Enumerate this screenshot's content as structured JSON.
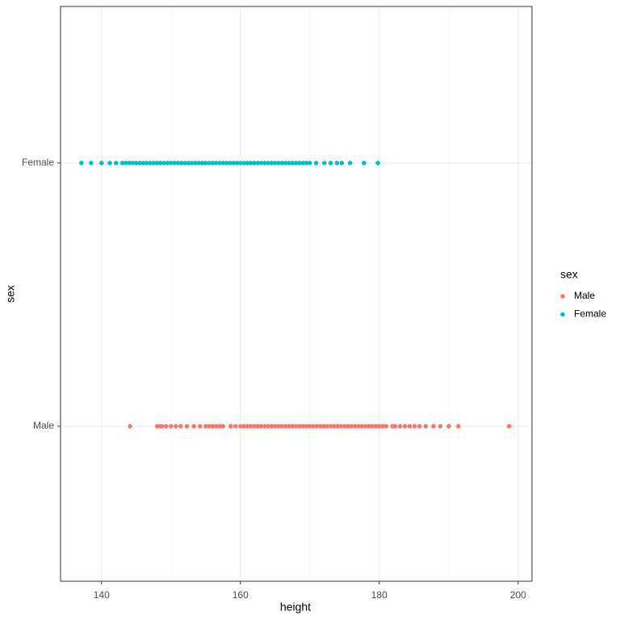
{
  "chart_data": {
    "type": "scatter",
    "x_label": "height",
    "y_label": "sex",
    "legend_title": "sex",
    "categories": [
      "Male",
      "Female"
    ],
    "xlim": [
      134.1,
      202.0
    ],
    "xticks": [
      140,
      160,
      180,
      200
    ],
    "grid": true,
    "series": [
      {
        "name": "Male",
        "color": "#F8766D",
        "values": [
          144.1,
          148,
          148.4,
          148.7,
          149.3,
          150,
          150.7,
          151.4,
          152.3,
          153.3,
          154.2,
          155,
          155.5,
          156,
          156.5,
          157,
          157.5,
          158.6,
          159.3,
          160,
          160.5,
          161,
          161.5,
          162,
          162.5,
          163,
          163.5,
          164,
          164.5,
          165,
          165.5,
          166,
          166.5,
          167,
          167.5,
          168,
          168.5,
          169,
          169.5,
          170,
          170.5,
          171,
          171.5,
          172,
          172.5,
          173,
          173.5,
          174,
          174.5,
          175,
          175.5,
          176,
          176.5,
          177,
          177.5,
          178,
          178.5,
          179,
          179.5,
          180,
          180.5,
          181,
          181.9,
          182.3,
          183,
          183.7,
          184.4,
          185.1,
          185.8,
          186.7,
          187.8,
          188.8,
          190,
          191.4,
          198.7
        ]
      },
      {
        "name": "Female",
        "color": "#00BFC4",
        "values": [
          137.1,
          138.5,
          140,
          141.2,
          142.1,
          143,
          143.5,
          144,
          144.5,
          145,
          145.5,
          146,
          146.5,
          147,
          147.5,
          148,
          148.5,
          149,
          149.5,
          150,
          150.5,
          151,
          151.5,
          152,
          152.5,
          153,
          153.5,
          154,
          154.5,
          155,
          155.5,
          156,
          156.5,
          157,
          157.5,
          158,
          158.5,
          159,
          159.5,
          160,
          160.5,
          161,
          161.5,
          162,
          162.5,
          163,
          163.5,
          164,
          164.5,
          165,
          165.5,
          166,
          166.5,
          167,
          167.5,
          168,
          168.5,
          169,
          169.5,
          170,
          170.9,
          172.1,
          173,
          173.9,
          174.6,
          175.8,
          177.8,
          179.8
        ]
      }
    ]
  }
}
